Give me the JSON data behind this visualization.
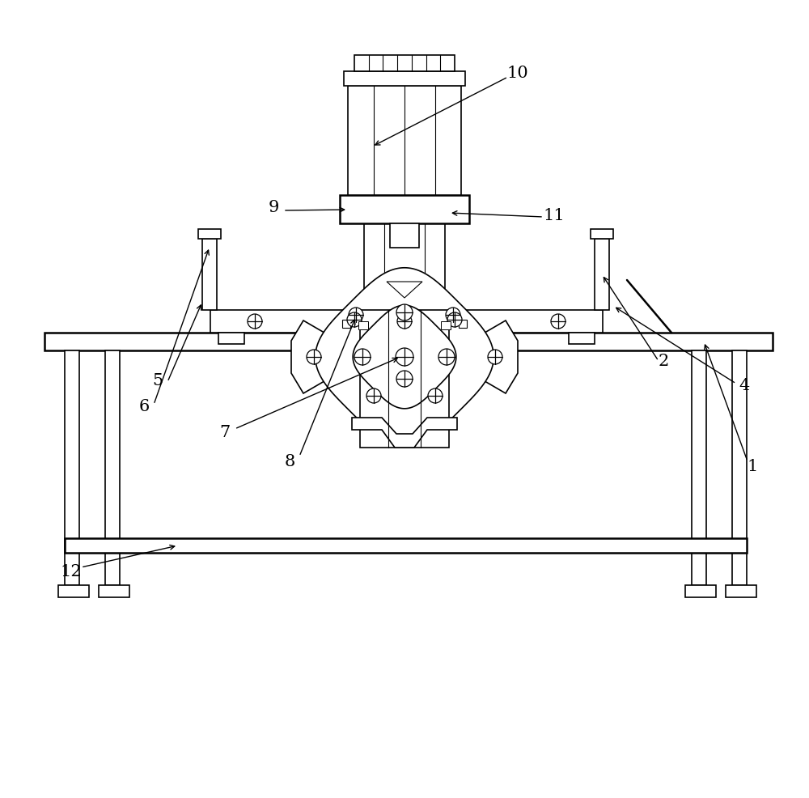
{
  "bg_color": "#ffffff",
  "lc": "#000000",
  "fig_width": 10.0,
  "fig_height": 9.86,
  "lw": 1.2,
  "lw_thick": 1.8,
  "fc": "white",
  "gray_light": "#f0f0f0"
}
